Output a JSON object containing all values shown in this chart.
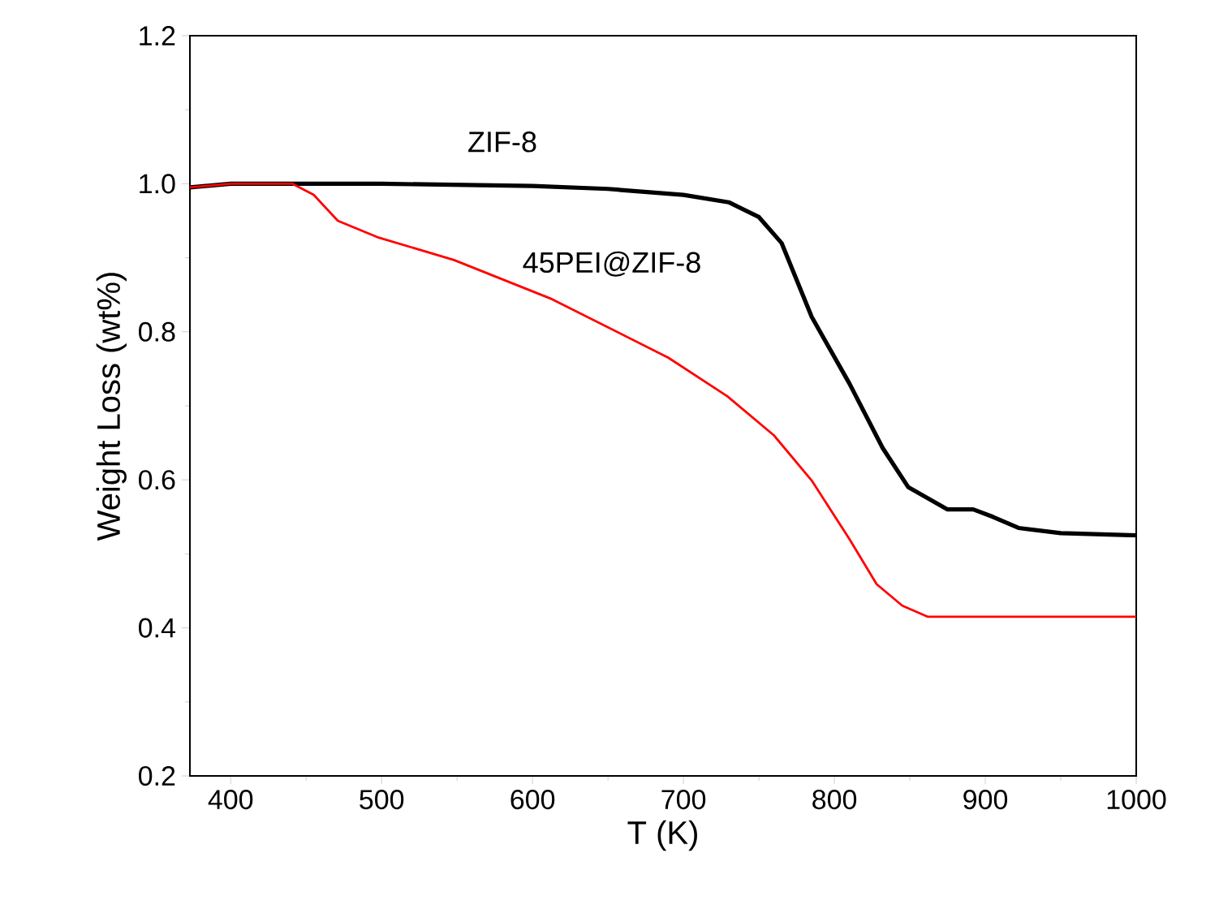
{
  "chart_data": {
    "type": "line",
    "xlabel": "T (K)",
    "ylabel": "Weight Loss (wt%)",
    "xlim": [
      373,
      1000
    ],
    "xticks": [
      400,
      500,
      600,
      700,
      800,
      900,
      1000
    ],
    "ylim": [
      0.2,
      1.2
    ],
    "yticks": [
      0.2,
      0.4,
      0.6,
      0.8,
      {
        "value": 1.0,
        "label": "1.0"
      },
      1.2
    ],
    "grid": false,
    "legend": false,
    "marker": "none",
    "line_style": "solid",
    "series": [
      {
        "name": "ZIF-8",
        "color": "#000000",
        "x": [
          373,
          400,
          500,
          600,
          650,
          700,
          730,
          750,
          765,
          785,
          810,
          832,
          849,
          875,
          892,
          905,
          922,
          950,
          1000
        ],
        "values": [
          0.995,
          1.0,
          1.0,
          0.997,
          0.993,
          0.985,
          0.975,
          0.955,
          0.92,
          0.82,
          0.73,
          0.643,
          0.59,
          0.56,
          0.56,
          0.55,
          0.535,
          0.528,
          0.525
        ]
      },
      {
        "name": "45PEI@ZIF-8",
        "color": "#ff0000",
        "x": [
          373,
          400,
          441,
          455,
          471,
          497,
          548,
          613,
          690,
          729,
          760,
          785,
          810,
          828,
          845,
          862,
          900,
          1000
        ],
        "values": [
          0.995,
          1.0,
          1.0,
          0.985,
          0.95,
          0.928,
          0.897,
          0.844,
          0.765,
          0.713,
          0.66,
          0.599,
          0.52,
          0.459,
          0.43,
          0.415,
          0.415,
          0.415
        ]
      }
    ]
  }
}
